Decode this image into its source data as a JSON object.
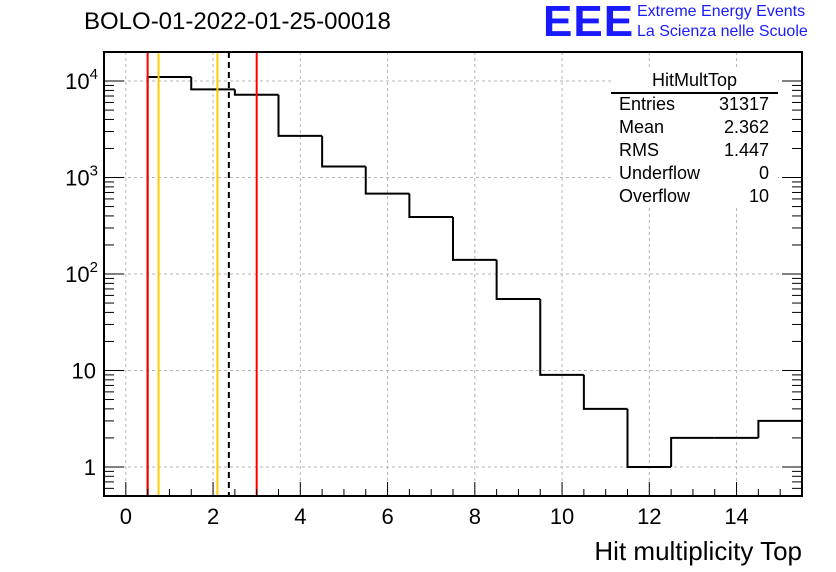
{
  "title": "BOLO-01-2022-01-25-00018",
  "logo": {
    "text": "EEE",
    "line1": "Extreme Energy Events",
    "line2": "La Scienza nelle Scuole"
  },
  "stats": {
    "name": "HitMultTop",
    "rows": [
      {
        "label": "Entries",
        "value": "31317"
      },
      {
        "label": "Mean",
        "value": "2.362"
      },
      {
        "label": "RMS",
        "value": "1.447"
      },
      {
        "label": "Underflow",
        "value": "0"
      },
      {
        "label": "Overflow",
        "value": "10"
      }
    ]
  },
  "chart_data": {
    "type": "histogram",
    "xlabel": "Hit multiplicity Top",
    "ylabel": "",
    "xlim": [
      -0.5,
      15.5
    ],
    "ylim": [
      0.5,
      20000
    ],
    "yscale": "log",
    "grid": true,
    "x_ticks": [
      0,
      2,
      4,
      6,
      8,
      10,
      12,
      14
    ],
    "y_ticks": [
      {
        "value": 1,
        "label": "1"
      },
      {
        "value": 10,
        "label": "10"
      },
      {
        "value": 100,
        "label": "10^2"
      },
      {
        "value": 1000,
        "label": "10^3"
      },
      {
        "value": 10000,
        "label": "10^4"
      }
    ],
    "bin_width": 1,
    "bin_centers": [
      1,
      2,
      3,
      4,
      5,
      6,
      7,
      8,
      9,
      10,
      11,
      12,
      13,
      14,
      15
    ],
    "counts": [
      11000,
      8200,
      7200,
      2700,
      1300,
      680,
      390,
      140,
      55,
      9,
      4,
      1,
      2,
      2,
      3
    ],
    "vertical_lines": [
      {
        "x": 0.5,
        "color": "#ff0000",
        "style": "solid"
      },
      {
        "x": 0.75,
        "color": "#ffcc00",
        "style": "solid"
      },
      {
        "x": 2.1,
        "color": "#ffcc00",
        "style": "solid"
      },
      {
        "x": 2.362,
        "color": "#000000",
        "style": "dashed"
      },
      {
        "x": 3.0,
        "color": "#ff0000",
        "style": "solid"
      }
    ]
  }
}
